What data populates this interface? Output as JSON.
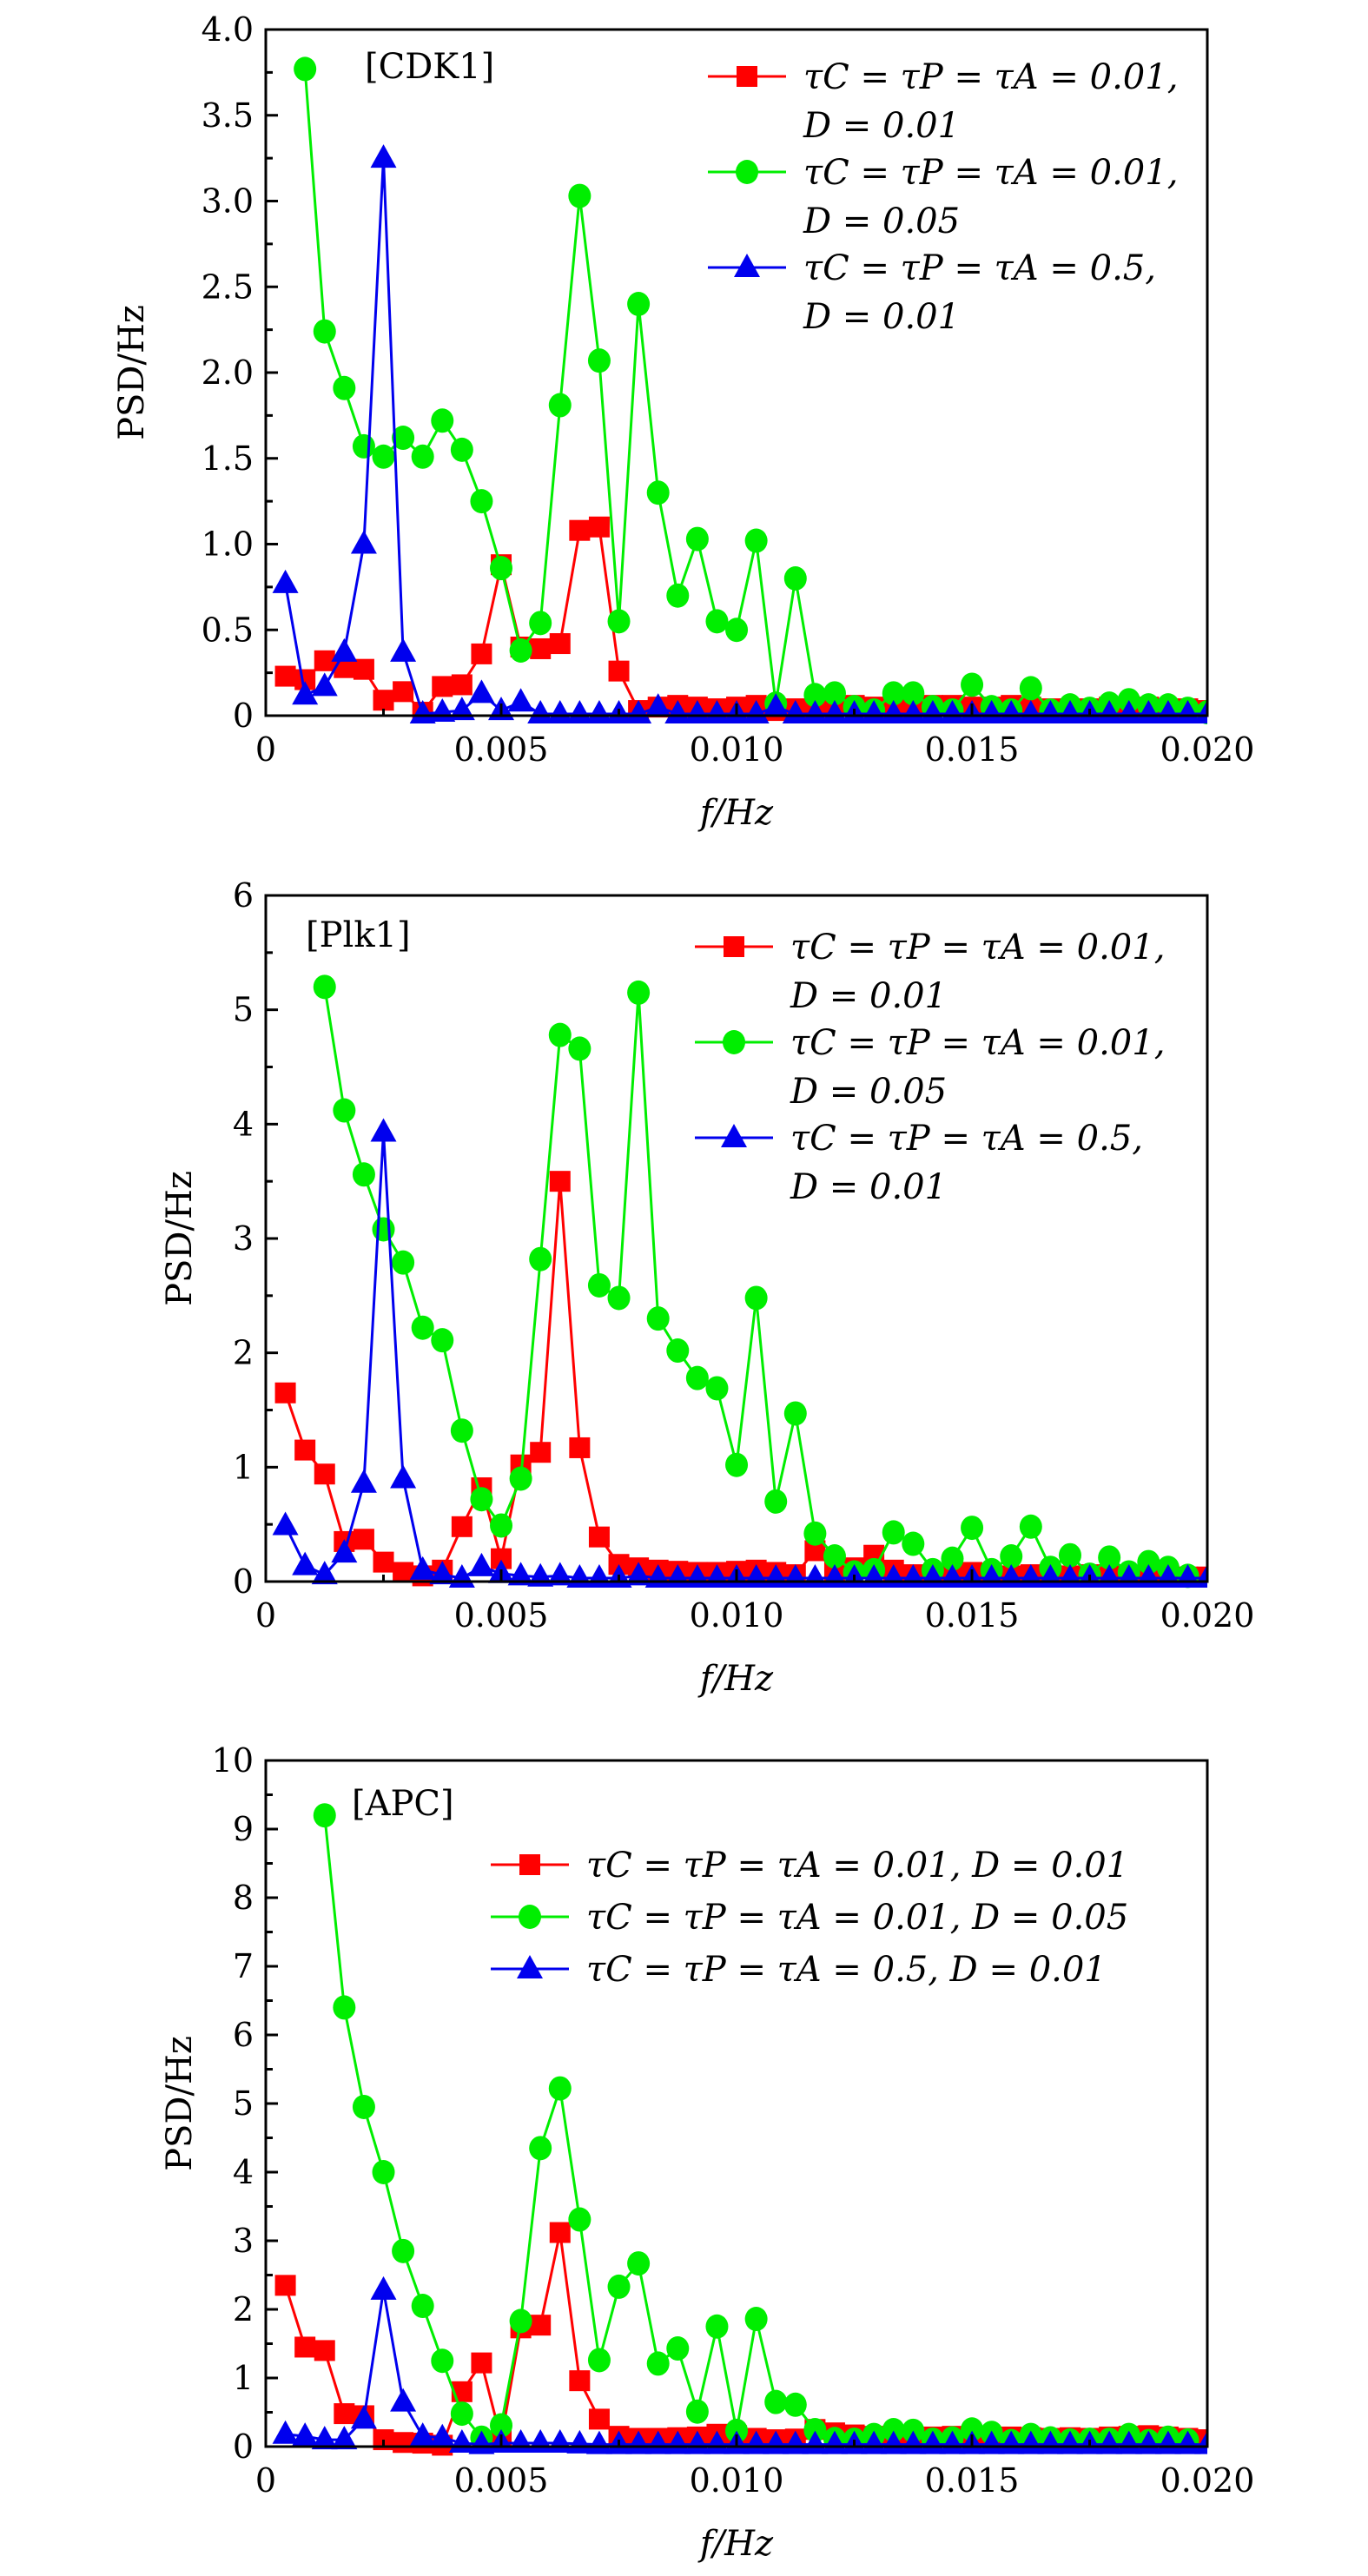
{
  "chart_data": [
    {
      "type": "line",
      "panel_label": "[CDK1]",
      "xlabel": "f/Hz",
      "ylabel": "PSD/Hz",
      "xlim": [
        0,
        0.02
      ],
      "ylim": [
        0,
        4.0
      ],
      "xticks": [
        "0",
        "0.005",
        "0.010",
        "0.015",
        "0.020"
      ],
      "xtick_values": [
        0,
        0.005,
        0.01,
        0.015,
        0.02
      ],
      "yticks": [
        "0",
        "0.5",
        "1.0",
        "1.5",
        "2.0",
        "2.5",
        "3.0",
        "3.5",
        "4.0"
      ],
      "ytick_values": [
        0,
        0.5,
        1.0,
        1.5,
        2.0,
        2.5,
        3.0,
        3.5,
        4.0
      ],
      "legend_position": "top-right",
      "legend_layout": "two-line",
      "x_step": 0.0004167,
      "series": [
        {
          "name": "τC = τP = τA = 0.01, D = 0.01",
          "legend_line1": "τC = τP = τA = 0.01,",
          "legend_line2": "D = 0.01",
          "color": "#ff0000",
          "marker": "square",
          "values": [
            0.23,
            0.21,
            0.32,
            0.28,
            0.27,
            0.09,
            0.14,
            0.02,
            0.17,
            0.18,
            0.36,
            0.88,
            0.4,
            0.39,
            0.42,
            1.08,
            1.1,
            0.26,
            0.03,
            0.05,
            0.06,
            0.05,
            0.04,
            0.05,
            0.06,
            0.03,
            0.04,
            0.05,
            0.06,
            0.06,
            0.05,
            0.04,
            0.05,
            0.06,
            0.06,
            0.05,
            0.05,
            0.06,
            0.05,
            0.04,
            0.04,
            0.04,
            0.05,
            0.04,
            0.05,
            0.04,
            0.04,
            0.03
          ]
        },
        {
          "name": "τC = τP = τA = 0.01, D = 0.05",
          "legend_line1": "τC = τP = τA = 0.01,",
          "legend_line2": "D = 0.05",
          "color": "#00ee00",
          "marker": "circle",
          "values": [
            null,
            3.77,
            2.24,
            1.91,
            1.57,
            1.51,
            1.62,
            1.51,
            1.72,
            1.55,
            1.25,
            0.86,
            0.38,
            0.54,
            1.81,
            3.03,
            2.07,
            0.55,
            2.4,
            1.3,
            0.7,
            1.03,
            0.55,
            0.5,
            1.02,
            0.07,
            0.8,
            0.12,
            0.13,
            0.05,
            0.03,
            0.13,
            0.13,
            0.05,
            0.03,
            0.18,
            0.05,
            0.03,
            0.16,
            0.03,
            0.06,
            0.04,
            0.07,
            0.09,
            0.06,
            0.06,
            0.04,
            0.02
          ]
        },
        {
          "name": "τC = τP = τA = 0.5, D = 0.01",
          "legend_line1": "τC = τP = τA = 0.5,",
          "legend_line2": "D = 0.01",
          "color": "#0000ee",
          "marker": "triangle",
          "values": [
            0.77,
            0.12,
            0.17,
            0.37,
            1.0,
            3.25,
            0.37,
            0.01,
            0.02,
            0.03,
            0.13,
            0.03,
            0.08,
            0.01,
            0.01,
            0.01,
            0.01,
            0.01,
            0.01,
            0.05,
            0.01,
            0.01,
            0.01,
            0.01,
            0.01,
            0.05,
            0.01,
            0.01,
            0.01,
            0.01,
            0.01,
            0.01,
            0.01,
            0.01,
            0.01,
            0.01,
            0.01,
            0.01,
            0.01,
            0.01,
            0.01,
            0.01,
            0.01,
            0.01,
            0.01,
            0.01,
            0.01,
            0.01
          ]
        }
      ]
    },
    {
      "type": "line",
      "panel_label": "[Plk1]",
      "xlabel": "f/Hz",
      "ylabel": "PSD/Hz",
      "xlim": [
        0,
        0.02
      ],
      "ylim": [
        0,
        6
      ],
      "xticks": [
        "0",
        "0.005",
        "0.010",
        "0.015",
        "0.020"
      ],
      "xtick_values": [
        0,
        0.005,
        0.01,
        0.015,
        0.02
      ],
      "yticks": [
        "0",
        "1",
        "2",
        "3",
        "4",
        "5",
        "6"
      ],
      "ytick_values": [
        0,
        1,
        2,
        3,
        4,
        5,
        6
      ],
      "legend_position": "top-right",
      "legend_layout": "two-line",
      "x_step": 0.0004167,
      "series": [
        {
          "name": "τC = τP = τA = 0.01, D = 0.01",
          "legend_line1": "τC = τP = τA = 0.01,",
          "legend_line2": "D = 0.01",
          "color": "#ff0000",
          "marker": "square",
          "values": [
            1.65,
            1.15,
            0.94,
            0.35,
            0.37,
            0.17,
            0.08,
            0.05,
            0.1,
            0.48,
            0.82,
            0.2,
            1.02,
            1.13,
            3.5,
            1.17,
            0.39,
            0.15,
            0.12,
            0.1,
            0.09,
            0.08,
            0.08,
            0.09,
            0.1,
            0.08,
            0.06,
            0.27,
            0.1,
            0.12,
            0.23,
            0.1,
            0.06,
            0.05,
            0.07,
            0.08,
            0.06,
            0.05,
            0.06,
            0.07,
            0.05,
            0.06,
            0.05,
            0.05,
            0.06,
            0.05,
            0.04,
            0.04
          ]
        },
        {
          "name": "τC = τP = τA = 0.01, D = 0.05",
          "legend_line1": "τC = τP = τA = 0.01,",
          "legend_line2": "D = 0.05",
          "color": "#00ee00",
          "marker": "circle",
          "values": [
            null,
            null,
            5.2,
            4.12,
            3.56,
            3.08,
            2.79,
            2.22,
            2.11,
            1.32,
            0.72,
            0.49,
            0.9,
            2.82,
            4.78,
            4.66,
            2.59,
            2.48,
            5.15,
            2.3,
            2.02,
            1.78,
            1.69,
            1.02,
            2.48,
            0.7,
            1.47,
            0.42,
            0.22,
            0.08,
            0.1,
            0.43,
            0.33,
            0.1,
            0.2,
            0.47,
            0.1,
            0.22,
            0.48,
            0.12,
            0.23,
            0.06,
            0.21,
            0.08,
            0.17,
            0.12,
            0.05,
            null
          ]
        },
        {
          "name": "τC = τP = τA = 0.5, D = 0.01",
          "legend_line1": "τC = τP = τA = 0.5,",
          "legend_line2": "D = 0.01",
          "color": "#0000ee",
          "marker": "triangle",
          "values": [
            0.49,
            0.14,
            0.06,
            0.25,
            0.86,
            3.93,
            0.9,
            0.1,
            0.06,
            0.03,
            0.13,
            0.07,
            0.05,
            0.04,
            0.05,
            0.03,
            0.03,
            0.03,
            0.05,
            0.03,
            0.03,
            0.03,
            0.03,
            0.03,
            0.03,
            0.03,
            0.03,
            0.03,
            0.03,
            0.03,
            0.03,
            0.03,
            0.03,
            0.03,
            0.03,
            0.03,
            0.03,
            0.03,
            0.03,
            0.03,
            0.03,
            0.03,
            0.03,
            0.03,
            0.03,
            0.03,
            0.03,
            0.03
          ]
        }
      ]
    },
    {
      "type": "line",
      "panel_label": "[APC]",
      "xlabel": "f/Hz",
      "ylabel": "PSD/Hz",
      "xlim": [
        0,
        0.02
      ],
      "ylim": [
        0,
        10
      ],
      "xticks": [
        "0",
        "0.005",
        "0.010",
        "0.015",
        "0.020"
      ],
      "xtick_values": [
        0,
        0.005,
        0.01,
        0.015,
        0.02
      ],
      "yticks": [
        "0",
        "1",
        "2",
        "3",
        "4",
        "5",
        "6",
        "7",
        "8",
        "9",
        "10"
      ],
      "ytick_values": [
        0,
        1,
        2,
        3,
        4,
        5,
        6,
        7,
        8,
        9,
        10
      ],
      "legend_position": "top-right",
      "legend_layout": "one-line",
      "x_step": 0.0004167,
      "series": [
        {
          "name": "τC = τP = τA = 0.01, D = 0.01",
          "legend_line1": "τC = τP = τA = 0.01,  D = 0.01",
          "legend_line2": "",
          "color": "#ff0000",
          "marker": "square",
          "values": [
            2.35,
            1.45,
            1.4,
            0.48,
            0.45,
            0.1,
            0.06,
            0.05,
            0.02,
            0.8,
            1.22,
            0.1,
            1.73,
            1.77,
            3.12,
            0.96,
            0.4,
            0.15,
            0.12,
            0.12,
            0.13,
            0.14,
            0.18,
            0.16,
            0.12,
            0.1,
            0.11,
            0.25,
            0.2,
            0.17,
            0.15,
            0.14,
            0.13,
            0.14,
            0.15,
            0.14,
            0.13,
            0.14,
            0.13,
            0.12,
            0.13,
            0.12,
            0.14,
            0.15,
            0.16,
            0.14,
            0.12,
            0.1
          ]
        },
        {
          "name": "τC = τP = τA = 0.01, D = 0.05",
          "legend_line1": "τC = τP = τA = 0.01,  D = 0.05",
          "legend_line2": "",
          "color": "#00ee00",
          "marker": "circle",
          "values": [
            null,
            null,
            9.2,
            6.4,
            4.95,
            4.0,
            2.85,
            2.05,
            1.25,
            0.48,
            0.13,
            0.31,
            1.83,
            4.35,
            5.22,
            3.31,
            1.26,
            2.33,
            2.67,
            1.21,
            1.43,
            0.51,
            1.75,
            0.23,
            1.86,
            0.65,
            0.61,
            0.24,
            0.11,
            0.1,
            0.17,
            0.24,
            0.23,
            0.1,
            0.12,
            0.25,
            0.2,
            0.08,
            0.17,
            0.12,
            0.09,
            0.1,
            0.1,
            0.17,
            0.08,
            0.13,
            0.09,
            null
          ]
        },
        {
          "name": "τC = τP = τA = 0.5, D = 0.01",
          "legend_line1": "τC = τP = τA = 0.5,  D = 0.01",
          "legend_line2": "",
          "color": "#0000ee",
          "marker": "triangle",
          "values": [
            0.18,
            0.15,
            0.1,
            0.1,
            0.4,
            2.28,
            0.65,
            0.15,
            0.13,
            0.05,
            0.03,
            0.05,
            0.05,
            0.05,
            0.05,
            0.04,
            0.03,
            0.03,
            0.03,
            0.03,
            0.03,
            0.03,
            0.03,
            0.03,
            0.03,
            0.03,
            0.03,
            0.03,
            0.03,
            0.03,
            0.03,
            0.03,
            0.03,
            0.03,
            0.03,
            0.03,
            0.03,
            0.03,
            0.03,
            0.03,
            0.03,
            0.03,
            0.03,
            0.03,
            0.03,
            0.03,
            0.03,
            0.03
          ]
        }
      ]
    }
  ]
}
